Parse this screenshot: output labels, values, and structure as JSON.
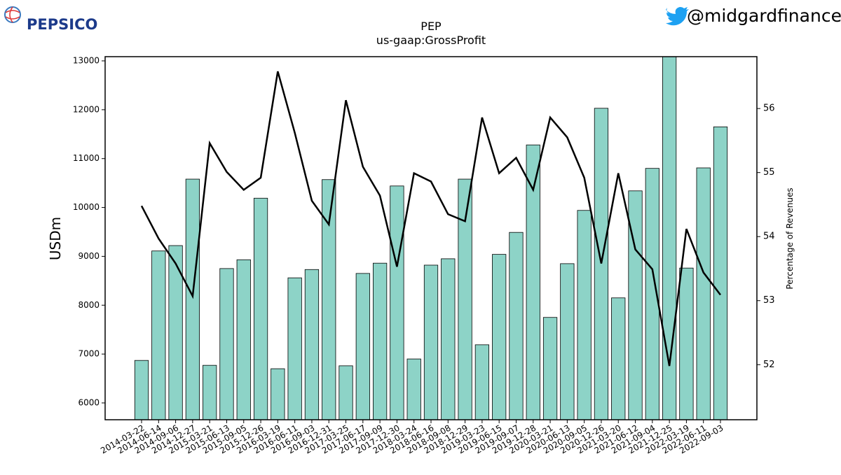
{
  "brand": "PEPSICO",
  "handle": "@midgardfinance",
  "chart_data": {
    "type": "bar_line",
    "title": "PEP",
    "subtitle": "us-gaap:GrossProfit",
    "y_label": "USDm",
    "y2_label": "Percentage of Revenues",
    "categories": [
      "2014-03-22",
      "2014-06-14",
      "2014-09-06",
      "2014-12-27",
      "2015-03-21",
      "2015-06-13",
      "2015-09-05",
      "2015-12-26",
      "2016-03-19",
      "2016-06-11",
      "2016-09-03",
      "2016-12-31",
      "2017-03-25",
      "2017-06-17",
      "2017-09-09",
      "2017-12-30",
      "2018-03-24",
      "2018-06-16",
      "2018-09-08",
      "2018-12-29",
      "2019-03-23",
      "2019-06-15",
      "2019-09-07",
      "2019-12-28",
      "2020-03-21",
      "2020-06-13",
      "2020-09-05",
      "2020-12-26",
      "2021-03-20",
      "2021-06-12",
      "2021-09-04",
      "2021-12-25",
      "2022-03-19",
      "2022-06-11",
      "2022-09-03"
    ],
    "series": [
      {
        "type": "bar",
        "color": "#8dd3c7",
        "values": [
          6870,
          9110,
          9220,
          10580,
          6770,
          8750,
          8930,
          10190,
          6700,
          8560,
          8730,
          10570,
          6760,
          8650,
          8860,
          10440,
          6900,
          8820,
          8950,
          10580,
          7190,
          9040,
          9490,
          11280,
          7750,
          8850,
          9940,
          12030,
          8150,
          10340,
          10800,
          13100,
          8760,
          10810,
          11650
        ]
      },
      {
        "type": "line",
        "axis": "y2",
        "color": "#000000",
        "values": [
          54.48,
          53.97,
          53.58,
          53.07,
          55.46,
          55.01,
          54.73,
          54.92,
          56.58,
          55.62,
          54.56,
          54.19,
          56.13,
          55.09,
          54.64,
          53.53,
          54.99,
          54.86,
          54.35,
          54.24,
          55.86,
          54.99,
          55.23,
          54.73,
          55.86,
          55.55,
          54.92,
          53.58,
          54.99,
          53.8,
          53.49,
          51.98,
          54.12,
          53.44,
          53.09
        ]
      }
    ],
    "ylim": [
      5656,
      13086
    ],
    "yticks": [
      6000,
      7000,
      8000,
      9000,
      10000,
      11000,
      12000,
      13000
    ],
    "y2lim": [
      51.14,
      56.81
    ],
    "y2ticks": [
      52,
      53,
      54,
      55,
      56
    ],
    "grid": false
  }
}
